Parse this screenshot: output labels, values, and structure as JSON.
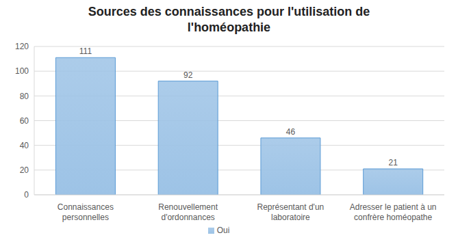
{
  "chart_data": {
    "type": "bar",
    "title": "Sources des connaissances pour l'utilisation de l'homéopathie",
    "categories": [
      "Connaissances personnelles",
      "Renouvellement d'ordonnances",
      "Représentant d'un laboratoire",
      "Adresser le patient à un confrère homéopathe"
    ],
    "series": [
      {
        "name": "Oui",
        "color": "#9dc3e6",
        "values": [
          111,
          92,
          46,
          21
        ]
      }
    ],
    "ylim": [
      0,
      120
    ],
    "yticks": [
      0,
      20,
      40,
      60,
      80,
      100,
      120
    ],
    "grid": true,
    "data_labels": true,
    "legend": "bottom"
  }
}
